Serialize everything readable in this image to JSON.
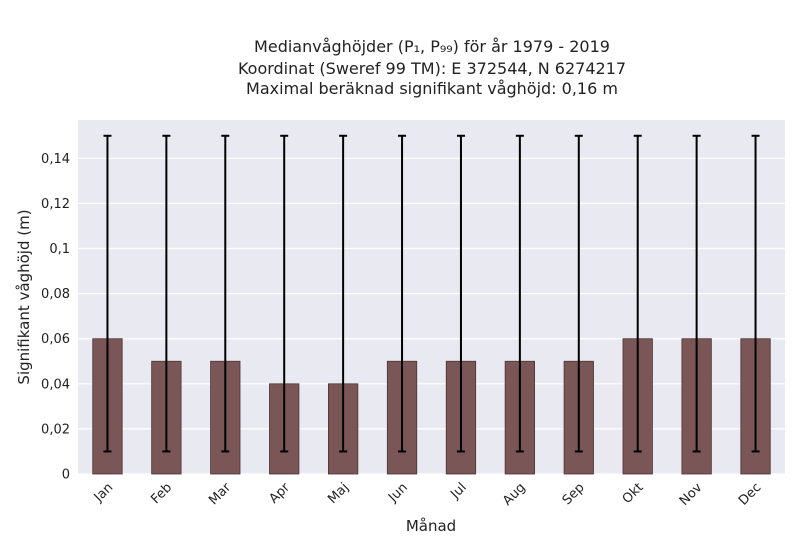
{
  "chart_data": {
    "type": "bar",
    "title_lines": [
      "Medianvåghöjder (P₁, P₉₉) för år 1979 - 2019",
      "Koordinat (Sweref 99 TM): E 372544, N 6274217",
      "Maximal beräknad signifikant våghöjd: 0,16 m"
    ],
    "xlabel": "Månad",
    "ylabel": "Signifikant våghöjd (m)",
    "categories": [
      "Jan",
      "Feb",
      "Mar",
      "Apr",
      "Maj",
      "Jun",
      "Jul",
      "Aug",
      "Sep",
      "Okt",
      "Nov",
      "Dec"
    ],
    "series": [
      {
        "values": [
          0.06,
          0.05,
          0.05,
          0.04,
          0.04,
          0.05,
          0.05,
          0.05,
          0.05,
          0.06,
          0.06,
          0.06
        ],
        "error_low": [
          0.01,
          0.01,
          0.01,
          0.01,
          0.01,
          0.01,
          0.01,
          0.01,
          0.01,
          0.01,
          0.01,
          0.01
        ],
        "error_high": [
          0.15,
          0.15,
          0.15,
          0.15,
          0.15,
          0.15,
          0.15,
          0.15,
          0.15,
          0.15,
          0.15,
          0.15
        ]
      }
    ],
    "yticks": [
      0,
      0.02,
      0.04,
      0.06,
      0.08,
      0.1,
      0.12,
      0.14
    ],
    "ytick_labels": [
      "0",
      "0,02",
      "0,04",
      "0,06",
      "0,08",
      "0,1",
      "0,12",
      "0,14"
    ],
    "ylim": [
      0,
      0.157
    ],
    "grid": true,
    "colors": {
      "bar": "#7b5656",
      "bar_edge": "#4a3535",
      "background": "#e9e9f1",
      "grid": "#ffffff",
      "error_bar": "#000000"
    }
  }
}
